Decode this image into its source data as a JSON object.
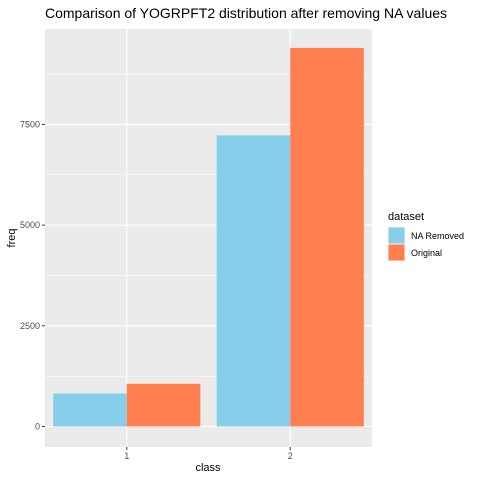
{
  "chart_data": {
    "type": "bar",
    "title": "Comparison of YOGRPFT2 distribution after removing NA values",
    "xlabel": "class",
    "ylabel": "freq",
    "categories": [
      "1",
      "2"
    ],
    "series": [
      {
        "name": "NA Removed",
        "values": [
          820,
          7230
        ],
        "color": "#87CEEB"
      },
      {
        "name": "Original",
        "values": [
          1060,
          9400
        ],
        "color": "#FF7F50"
      }
    ],
    "ylim": [
      0,
      9870
    ],
    "yticks": [
      0,
      2500,
      5000,
      7500
    ],
    "ytick_labels": [
      "0",
      "2500",
      "5000",
      "7500"
    ],
    "legend_title": "dataset",
    "legend_position": "right",
    "grid": true,
    "panel_background": "#EBEBEB",
    "grid_color": "#FFFFFF"
  }
}
